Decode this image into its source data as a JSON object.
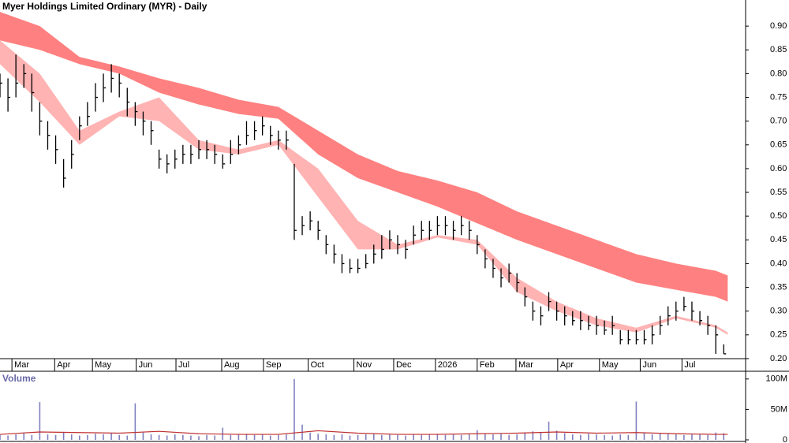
{
  "chart_data": [
    {
      "type": "ohlc",
      "title": "Myer Holdings Limited Ordinary (MYR) - Daily",
      "xlim": [
        0,
        375
      ],
      "ylim": [
        0.175,
        0.955
      ],
      "xticks": [
        {
          "value": 6,
          "label": "Mar"
        },
        {
          "value": 27.5,
          "label": "Apr"
        },
        {
          "value": 46.5,
          "label": "May"
        },
        {
          "value": 68.5,
          "label": "Jun"
        },
        {
          "value": 88.5,
          "label": "Jul"
        },
        {
          "value": 111.5,
          "label": "Aug"
        },
        {
          "value": 132.5,
          "label": "Sep"
        },
        {
          "value": 155,
          "label": "Oct"
        },
        {
          "value": 178,
          "label": "Nov"
        },
        {
          "value": 198,
          "label": "Dec"
        },
        {
          "value": 219,
          "label": "2026"
        },
        {
          "value": 240,
          "label": "Feb"
        },
        {
          "value": 259.5,
          "label": "Mar"
        },
        {
          "value": 280.5,
          "label": "Apr"
        },
        {
          "value": 301.5,
          "label": "May"
        },
        {
          "value": 322,
          "label": "Jun"
        },
        {
          "value": 343,
          "label": "Jul"
        }
      ],
      "yticks": [
        {
          "value": 0.2,
          "label": "0.20"
        },
        {
          "value": 0.25,
          "label": "0.25"
        },
        {
          "value": 0.3,
          "label": "0.30"
        },
        {
          "value": 0.35,
          "label": "0.35"
        },
        {
          "value": 0.4,
          "label": "0.40"
        },
        {
          "value": 0.45,
          "label": "0.45"
        },
        {
          "value": 0.5,
          "label": "0.50"
        },
        {
          "value": 0.55,
          "label": "0.55"
        },
        {
          "value": 0.6,
          "label": "0.60"
        },
        {
          "value": 0.65,
          "label": "0.65"
        },
        {
          "value": 0.7,
          "label": "0.70"
        },
        {
          "value": 0.75,
          "label": "0.75"
        },
        {
          "value": 0.8,
          "label": "0.80"
        },
        {
          "value": 0.85,
          "label": "0.85"
        },
        {
          "value": 0.9,
          "label": "0.90"
        }
      ],
      "color": "#000000",
      "x": [
        0,
        4,
        8,
        12,
        16,
        20,
        24,
        28,
        32,
        36,
        40,
        44,
        48,
        52,
        56,
        60,
        64,
        68,
        72,
        76,
        80,
        84,
        88,
        92,
        96,
        100,
        104,
        108,
        112,
        116,
        120,
        124,
        128,
        132,
        136,
        140,
        144,
        148,
        152,
        156,
        160,
        164,
        168,
        172,
        176,
        180,
        184,
        188,
        192,
        196,
        200,
        204,
        208,
        212,
        216,
        220,
        224,
        228,
        232,
        236,
        240,
        244,
        248,
        252,
        256,
        260,
        264,
        268,
        272,
        276,
        280,
        284,
        288,
        292,
        296,
        300,
        304,
        308,
        312,
        316,
        320,
        324,
        328,
        332,
        336,
        340,
        344,
        348,
        352,
        356,
        360,
        364
      ],
      "high": [
        0.8,
        0.79,
        0.84,
        0.82,
        0.8,
        0.74,
        0.7,
        0.67,
        0.62,
        0.66,
        0.71,
        0.74,
        0.78,
        0.8,
        0.82,
        0.8,
        0.77,
        0.74,
        0.72,
        0.7,
        0.64,
        0.63,
        0.64,
        0.65,
        0.65,
        0.66,
        0.66,
        0.65,
        0.63,
        0.66,
        0.67,
        0.7,
        0.7,
        0.71,
        0.69,
        0.68,
        0.68,
        0.61,
        0.5,
        0.51,
        0.49,
        0.46,
        0.44,
        0.42,
        0.41,
        0.41,
        0.42,
        0.44,
        0.46,
        0.47,
        0.46,
        0.45,
        0.48,
        0.49,
        0.49,
        0.5,
        0.5,
        0.49,
        0.5,
        0.49,
        0.46,
        0.43,
        0.41,
        0.39,
        0.4,
        0.38,
        0.35,
        0.32,
        0.31,
        0.34,
        0.32,
        0.31,
        0.3,
        0.3,
        0.29,
        0.29,
        0.28,
        0.29,
        0.26,
        0.26,
        0.26,
        0.26,
        0.27,
        0.29,
        0.31,
        0.32,
        0.33,
        0.32,
        0.3,
        0.29,
        0.27,
        0.23
      ],
      "low": [
        0.75,
        0.72,
        0.75,
        0.77,
        0.72,
        0.67,
        0.64,
        0.61,
        0.56,
        0.6,
        0.66,
        0.69,
        0.72,
        0.74,
        0.76,
        0.75,
        0.71,
        0.69,
        0.67,
        0.65,
        0.6,
        0.59,
        0.6,
        0.61,
        0.61,
        0.62,
        0.62,
        0.61,
        0.6,
        0.61,
        0.63,
        0.65,
        0.66,
        0.67,
        0.65,
        0.64,
        0.64,
        0.45,
        0.46,
        0.47,
        0.45,
        0.42,
        0.4,
        0.38,
        0.38,
        0.38,
        0.39,
        0.4,
        0.41,
        0.43,
        0.42,
        0.41,
        0.44,
        0.45,
        0.45,
        0.46,
        0.46,
        0.45,
        0.46,
        0.45,
        0.42,
        0.39,
        0.37,
        0.35,
        0.36,
        0.34,
        0.31,
        0.28,
        0.27,
        0.3,
        0.28,
        0.27,
        0.27,
        0.26,
        0.26,
        0.25,
        0.25,
        0.25,
        0.23,
        0.23,
        0.23,
        0.23,
        0.23,
        0.25,
        0.27,
        0.28,
        0.3,
        0.28,
        0.27,
        0.25,
        0.21,
        0.21
      ],
      "close": [
        0.78,
        0.75,
        0.78,
        0.8,
        0.76,
        0.7,
        0.67,
        0.64,
        0.58,
        0.63,
        0.69,
        0.71,
        0.75,
        0.77,
        0.79,
        0.78,
        0.74,
        0.72,
        0.7,
        0.68,
        0.62,
        0.61,
        0.62,
        0.63,
        0.63,
        0.64,
        0.64,
        0.63,
        0.61,
        0.63,
        0.65,
        0.67,
        0.68,
        0.69,
        0.67,
        0.66,
        0.66,
        0.47,
        0.48,
        0.49,
        0.47,
        0.44,
        0.42,
        0.4,
        0.39,
        0.39,
        0.4,
        0.42,
        0.43,
        0.45,
        0.44,
        0.43,
        0.46,
        0.47,
        0.47,
        0.48,
        0.48,
        0.47,
        0.48,
        0.47,
        0.44,
        0.41,
        0.39,
        0.37,
        0.38,
        0.36,
        0.33,
        0.3,
        0.29,
        0.32,
        0.3,
        0.29,
        0.28,
        0.28,
        0.27,
        0.27,
        0.26,
        0.27,
        0.24,
        0.24,
        0.24,
        0.24,
        0.25,
        0.27,
        0.29,
        0.3,
        0.31,
        0.3,
        0.28,
        0.27,
        0.25,
        0.21
      ],
      "bands": [
        {
          "color": "#ff8080",
          "x": [
            0,
            20,
            40,
            60,
            80,
            100,
            120,
            140,
            160,
            180,
            200,
            220,
            240,
            260,
            280,
            300,
            320,
            340,
            360,
            366
          ],
          "upper": [
            0.93,
            0.9,
            0.835,
            0.815,
            0.79,
            0.77,
            0.745,
            0.73,
            0.68,
            0.63,
            0.595,
            0.575,
            0.55,
            0.51,
            0.48,
            0.45,
            0.42,
            0.4,
            0.385,
            0.375
          ],
          "lower": [
            0.87,
            0.85,
            0.82,
            0.8,
            0.76,
            0.735,
            0.715,
            0.705,
            0.63,
            0.58,
            0.55,
            0.52,
            0.485,
            0.45,
            0.42,
            0.39,
            0.36,
            0.345,
            0.33,
            0.32
          ]
        },
        {
          "color": "#ffb3b3",
          "x": [
            0,
            20,
            40,
            60,
            80,
            100,
            120,
            140,
            160,
            180,
            200,
            220,
            240,
            260,
            280,
            300,
            320,
            340,
            360,
            366
          ],
          "upper": [
            0.87,
            0.8,
            0.68,
            0.72,
            0.75,
            0.66,
            0.64,
            0.66,
            0.6,
            0.49,
            0.44,
            0.46,
            0.45,
            0.37,
            0.32,
            0.285,
            0.265,
            0.29,
            0.27,
            0.255
          ],
          "lower": [
            0.82,
            0.74,
            0.65,
            0.71,
            0.7,
            0.64,
            0.63,
            0.65,
            0.54,
            0.43,
            0.43,
            0.455,
            0.44,
            0.34,
            0.3,
            0.27,
            0.255,
            0.285,
            0.265,
            0.25
          ]
        }
      ]
    },
    {
      "type": "bar",
      "title": "Volume",
      "color": "#8080c0",
      "xlim": [
        0,
        375
      ],
      "ylim": [
        0,
        114000000
      ],
      "yticks": [
        0,
        {
          "value": 50000000,
          "label": "50M"
        },
        {
          "value": 100000000,
          "label": "100M"
        }
      ],
      "x": [
        0,
        4,
        8,
        12,
        16,
        20,
        24,
        28,
        32,
        36,
        40,
        44,
        48,
        52,
        56,
        60,
        64,
        68,
        72,
        76,
        80,
        84,
        88,
        92,
        96,
        100,
        104,
        108,
        112,
        116,
        120,
        124,
        128,
        132,
        136,
        140,
        144,
        148,
        152,
        156,
        160,
        164,
        168,
        172,
        176,
        180,
        184,
        188,
        192,
        196,
        200,
        204,
        208,
        212,
        216,
        220,
        224,
        228,
        232,
        236,
        240,
        244,
        248,
        252,
        256,
        260,
        264,
        268,
        272,
        276,
        280,
        284,
        288,
        292,
        296,
        300,
        304,
        308,
        312,
        316,
        320,
        324,
        328,
        332,
        336,
        340,
        344,
        348,
        352,
        356,
        360,
        364
      ],
      "values": [
        8000000.0,
        7000000.0,
        9000000.0,
        11000000.0,
        8000000.0,
        62000000.0,
        9000000.0,
        8000000.0,
        12000000.0,
        9000000.0,
        7000000.0,
        8000000.0,
        10000000.0,
        9000000.0,
        11000000.0,
        8000000.0,
        7000000.0,
        60000000.0,
        12000000.0,
        9000000.0,
        8000000.0,
        7000000.0,
        9000000.0,
        8000000.0,
        7000000.0,
        6000000.0,
        8000000.0,
        7000000.0,
        20000000.0,
        8000000.0,
        9000000.0,
        10000000.0,
        8000000.0,
        9000000.0,
        7000000.0,
        8000000.0,
        9000000.0,
        100000000.0,
        25000000.0,
        12000000.0,
        10000000.0,
        9000000.0,
        8000000.0,
        9000000.0,
        7000000.0,
        8000000.0,
        9000000.0,
        10000000.0,
        8000000.0,
        9000000.0,
        8000000.0,
        7000000.0,
        9000000.0,
        8000000.0,
        9000000.0,
        10000000.0,
        8000000.0,
        9000000.0,
        8000000.0,
        9000000.0,
        16000000.0,
        11000000.0,
        9000000.0,
        10000000.0,
        8000000.0,
        9000000.0,
        12000000.0,
        14000000.0,
        13000000.0,
        30000000.0,
        15000000.0,
        11000000.0,
        9000000.0,
        8000000.0,
        10000000.0,
        9000000.0,
        8000000.0,
        7000000.0,
        9000000.0,
        8000000.0,
        63000000.0,
        12000000.0,
        9000000.0,
        10000000.0,
        11000000.0,
        9000000.0,
        8000000.0,
        9000000.0,
        10000000.0,
        8000000.0,
        12000000.0,
        11000000.0
      ],
      "average": {
        "color": "#c03030",
        "x": [
          0,
          20,
          40,
          60,
          80,
          100,
          120,
          140,
          160,
          180,
          200,
          220,
          240,
          260,
          280,
          300,
          320,
          340,
          360,
          366
        ],
        "values": [
          9000000.0,
          13000000.0,
          12000000.0,
          11000000.0,
          14000000.0,
          10000000.0,
          9000000.0,
          9000000.0,
          15000000.0,
          11000000.0,
          9000000.0,
          9000000.0,
          10000000.0,
          11000000.0,
          13000000.0,
          11000000.0,
          12000000.0,
          10000000.0,
          9000000.0,
          9000000.0
        ]
      }
    }
  ]
}
